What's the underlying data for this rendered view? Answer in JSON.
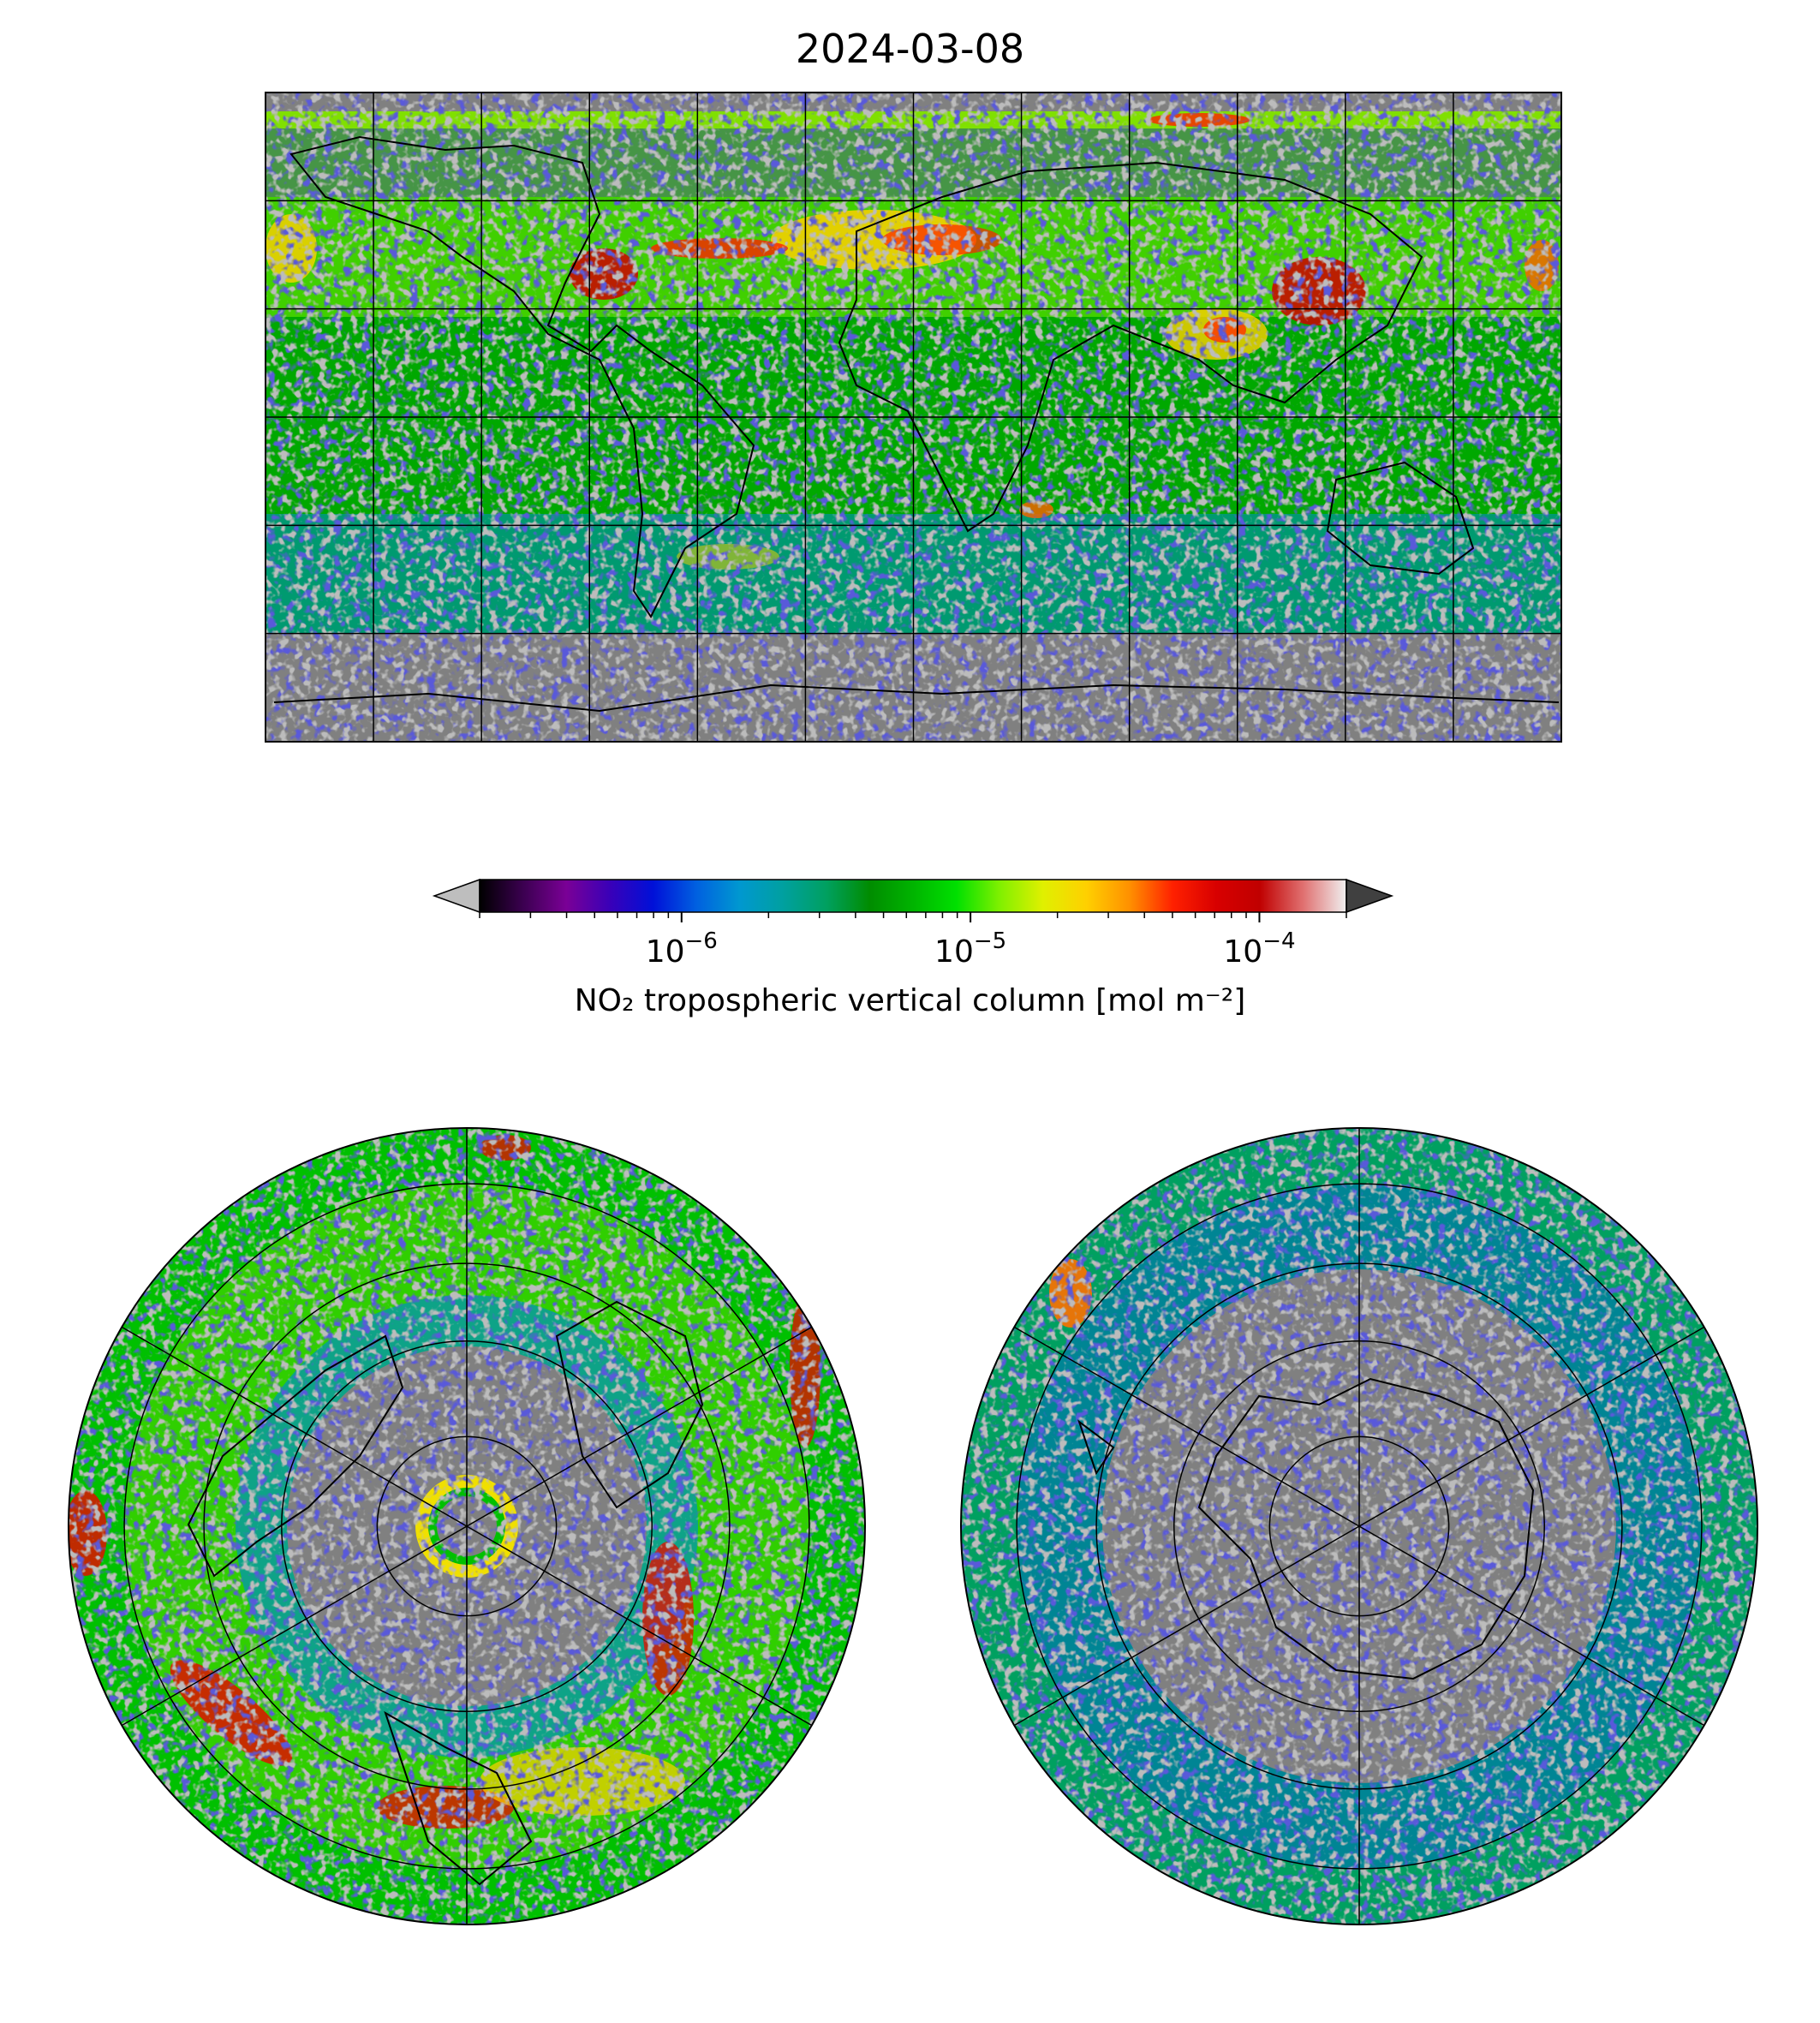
{
  "title": "2024-03-08",
  "colorbar": {
    "label": "NO₂ tropospheric vertical column [mol m⁻²]",
    "scale": "log",
    "range": [
      2e-07,
      0.0002
    ],
    "extend": "both",
    "ticks": [
      {
        "base": "10",
        "exp": "−6",
        "value": 1e-06
      },
      {
        "base": "10",
        "exp": "−5",
        "value": 1e-05
      },
      {
        "base": "10",
        "exp": "−4",
        "value": 0.0001
      }
    ],
    "colors": [
      "#000000",
      "#3b0050",
      "#7a0096",
      "#3a00b8",
      "#0010d8",
      "#0060e0",
      "#0098d0",
      "#00a0a0",
      "#00a060",
      "#008c00",
      "#00b400",
      "#00e000",
      "#80f000",
      "#e0f000",
      "#ffd000",
      "#ff9000",
      "#ff2000",
      "#d80000",
      "#c00000",
      "#e07070",
      "#f0f0f0"
    ],
    "under_color": "#bebebe",
    "over_color": "#404040"
  },
  "maps": {
    "global": {
      "projection": "PlateCarree",
      "no_data_color": "#808080"
    },
    "north_polar": {
      "projection": "NorthPolarStereo"
    },
    "south_polar": {
      "projection": "SouthPolarStereo"
    }
  }
}
